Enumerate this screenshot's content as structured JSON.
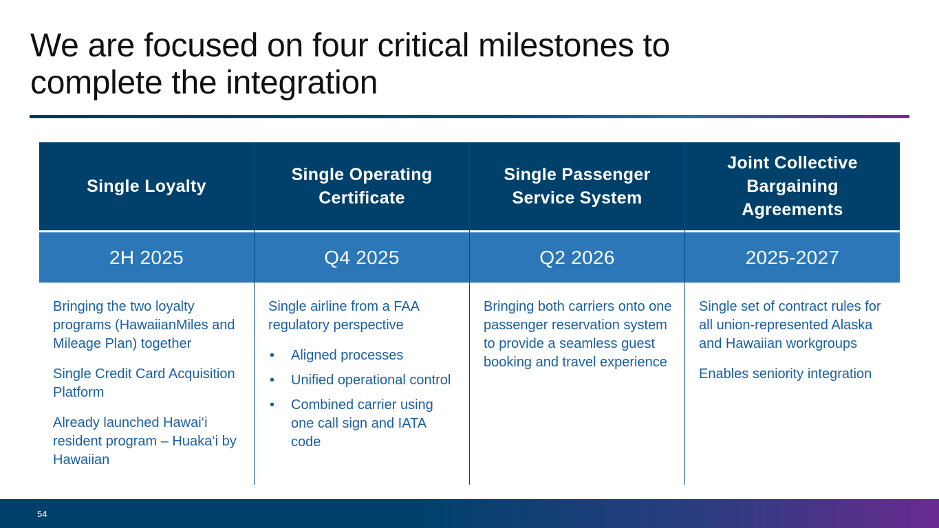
{
  "slide": {
    "title": "We are focused on four critical milestones to complete the integration",
    "page_number": "54"
  },
  "milestones": [
    {
      "header": "Single Loyalty",
      "date": "2H 2025",
      "paragraphs": [
        "Bringing the two loyalty programs (HawaiianMiles and Mileage Plan) together",
        "Single Credit Card Acquisition Platform",
        "Already launched Hawai‘i resident program – Huaka‘i by Hawaiian"
      ]
    },
    {
      "header": "Single Operating Certificate",
      "date": "Q4 2025",
      "paragraphs": [
        "Single airline from a FAA regulatory perspective"
      ],
      "bullets": [
        "Aligned processes",
        "Unified operational control",
        "Combined carrier using one call sign and IATA code"
      ]
    },
    {
      "header": "Single Passenger Service System",
      "date": "Q2 2026",
      "paragraphs": [
        "Bringing both carriers onto one passenger reservation system to provide a seamless guest booking and travel experience"
      ]
    },
    {
      "header": "Joint Collective Bargaining Agreements",
      "date": "2025-2027",
      "paragraphs": [
        "Single set of contract rules for all union-represented Alaska and Hawaiian workgroups",
        "Enables seniority integration"
      ]
    }
  ],
  "bullet_glyph": "•",
  "colors": {
    "header_bg": "#00416c",
    "date_bg": "#2c77b8",
    "body_text": "#1a5fa0",
    "accent_purple": "#7b2a90"
  }
}
